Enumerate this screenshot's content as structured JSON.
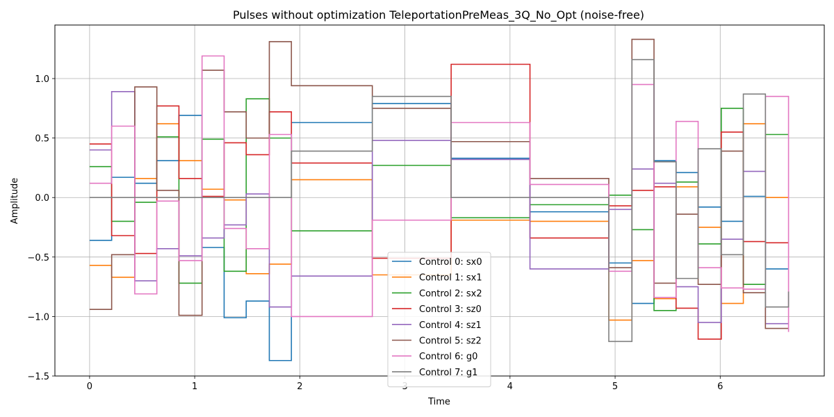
{
  "chart_data": {
    "type": "line",
    "step": "post",
    "title": "Pulses without optimization TeleportationPreMeas_3Q_No_Opt (noise-free)",
    "xlabel": "Time",
    "ylabel": "Amplitude",
    "xlim": [
      -0.33,
      6.99
    ],
    "ylim": [
      -1.5,
      1.45
    ],
    "xticks": [
      0,
      1,
      2,
      3,
      4,
      5,
      6
    ],
    "yticks": [
      -1.5,
      -1.0,
      -0.5,
      0.0,
      0.5,
      1.0
    ],
    "ytick_labels": [
      "−1.5",
      "−1.0",
      "−0.5",
      "0.0",
      "0.5",
      "1.0"
    ],
    "grid": true,
    "legend_position": "lower-center",
    "x": [
      0,
      0.21,
      0.43,
      0.64,
      0.85,
      1.07,
      1.28,
      1.49,
      1.71,
      1.92,
      2.69,
      3.44,
      4.19,
      4.94,
      5.16,
      5.37,
      5.58,
      5.79,
      6.01,
      6.22,
      6.43,
      6.65
    ],
    "series": [
      {
        "name": "Control 0: sx0",
        "color": "#1f77b4",
        "values": [
          -0.36,
          0.17,
          0.12,
          0.31,
          0.69,
          -0.42,
          -1.01,
          -0.87,
          -1.37,
          0.63,
          0.79,
          0.33,
          -0.12,
          -0.55,
          -0.89,
          0.31,
          0.21,
          -0.08,
          -0.2,
          0.01,
          -0.6,
          -0.6
        ]
      },
      {
        "name": "Control 1: sx1",
        "color": "#ff7f0e",
        "values": [
          -0.57,
          -0.67,
          0.16,
          0.62,
          0.31,
          0.07,
          -0.02,
          -0.64,
          -0.56,
          0.15,
          -0.65,
          -0.19,
          -0.2,
          -1.03,
          -0.53,
          -0.85,
          0.09,
          -0.25,
          -0.89,
          0.62,
          0.0,
          0.0
        ]
      },
      {
        "name": "Control 2: sx2",
        "color": "#2ca02c",
        "values": [
          0.26,
          -0.2,
          -0.04,
          0.51,
          -0.72,
          0.49,
          -0.62,
          0.83,
          0.5,
          -0.28,
          0.27,
          -0.17,
          -0.06,
          0.02,
          -0.27,
          -0.95,
          0.13,
          -0.39,
          0.75,
          -0.73,
          0.53,
          0.53
        ]
      },
      {
        "name": "Control 3: sz0",
        "color": "#d62728",
        "values": [
          0.45,
          -0.32,
          -0.47,
          0.77,
          0.16,
          0.01,
          0.46,
          0.36,
          0.72,
          0.29,
          -0.51,
          1.12,
          -0.34,
          -0.07,
          0.06,
          0.09,
          -0.93,
          -1.19,
          0.55,
          -0.37,
          -0.38,
          -0.38
        ]
      },
      {
        "name": "Control 4: sz1",
        "color": "#9467bd",
        "values": [
          0.4,
          0.89,
          -0.7,
          -0.43,
          -0.49,
          -0.34,
          -0.23,
          0.03,
          -0.92,
          -0.66,
          0.48,
          0.32,
          -0.6,
          -0.1,
          0.24,
          0.12,
          -0.75,
          -1.05,
          -0.35,
          0.22,
          -1.06,
          -1.06
        ]
      },
      {
        "name": "Control 5: sz2",
        "color": "#8c564b",
        "values": [
          -0.94,
          -0.48,
          0.93,
          0.06,
          -0.99,
          1.07,
          0.72,
          0.5,
          1.31,
          0.94,
          0.75,
          0.47,
          0.16,
          -0.59,
          1.33,
          -0.72,
          -0.14,
          -0.73,
          0.39,
          -0.8,
          -1.1,
          -1.1
        ]
      },
      {
        "name": "Control 6: g0",
        "color": "#e377c2",
        "values": [
          0.12,
          0.6,
          -0.81,
          -0.03,
          -0.53,
          1.19,
          -0.26,
          -0.43,
          0.53,
          -1.0,
          -0.19,
          0.63,
          0.11,
          -0.62,
          0.95,
          -0.84,
          0.64,
          -0.59,
          -0.76,
          -0.77,
          0.85,
          -1.13
        ]
      },
      {
        "name": "Control 7: g1",
        "color": "#7f7f7f",
        "values": [
          0.0,
          0.0,
          0.0,
          0.0,
          0.0,
          0.0,
          0.0,
          0.0,
          0.0,
          0.39,
          0.85,
          0.0,
          0.0,
          -1.21,
          1.16,
          0.3,
          -0.68,
          0.41,
          -0.48,
          0.87,
          -0.92,
          -0.79
        ]
      }
    ]
  }
}
